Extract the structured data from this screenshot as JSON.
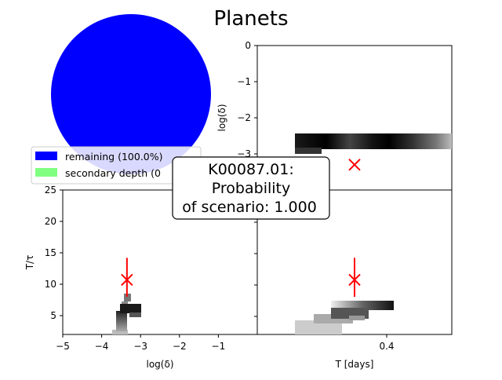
{
  "title": "Planets",
  "chart_data": [
    {
      "type": "pie",
      "values": [
        100.0,
        0.0
      ],
      "legend": [
        {
          "label": "remaining (100.0%)",
          "color": "#0000ff"
        },
        {
          "label": "secondary depth (0",
          "color": "#80ff80"
        }
      ],
      "legend_placement": "lower-left"
    },
    {
      "type": "heatmap",
      "name": "top-right",
      "ylabel": "log(δ)",
      "ylim": [
        -4,
        0
      ],
      "yticks": [
        "0",
        "−1",
        "−2",
        "−3"
      ],
      "marker": {
        "x": 0.5,
        "y": -3.3
      }
    },
    {
      "type": "heatmap",
      "name": "bottom-left",
      "xlabel": "log(δ)",
      "ylabel": "T/τ",
      "xlim": [
        -5,
        0
      ],
      "ylim": [
        2,
        25
      ],
      "xticks": [
        "−5",
        "−4",
        "−3",
        "−2",
        "−1"
      ],
      "yticks": [
        "25",
        "20",
        "15",
        "10",
        "5"
      ],
      "marker": {
        "x": -3.35,
        "y": 10.7,
        "err_low": 8.0,
        "err_high": 14.2
      }
    },
    {
      "type": "heatmap",
      "name": "bottom-right",
      "xlabel": "T [days]",
      "xticks": [
        "0.4"
      ],
      "marker": {
        "x": 0.5,
        "y": 10.7
      }
    }
  ],
  "annotation": {
    "line1": "K00087.01:",
    "line2": "Probability",
    "line3": "of scenario: 1.000"
  }
}
